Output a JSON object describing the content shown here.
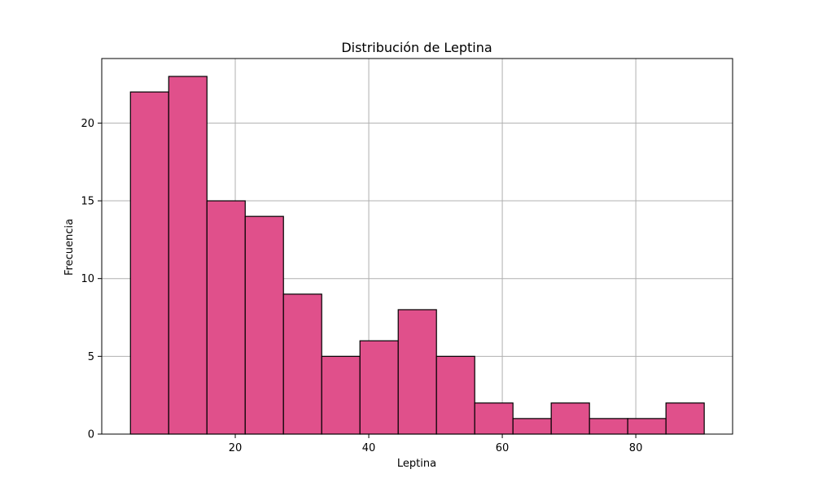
{
  "chart_data": {
    "type": "bar",
    "title": "Distribución de Leptina",
    "xlabel": "Leptina",
    "ylabel": "Frecuencia",
    "bin_edges": [
      4.3,
      10.03,
      15.76,
      21.49,
      27.22,
      32.95,
      38.68,
      44.41,
      50.14,
      55.87,
      61.6,
      67.33,
      73.06,
      78.79,
      84.52,
      90.25
    ],
    "values": [
      22,
      23,
      15,
      14,
      9,
      5,
      6,
      8,
      5,
      2,
      1,
      2,
      1,
      1,
      2
    ],
    "xlim": [
      0,
      94.5
    ],
    "ylim": [
      0,
      24.15
    ],
    "xticks": [
      20,
      40,
      60,
      80
    ],
    "yticks": [
      0,
      5,
      10,
      15,
      20
    ],
    "grid": true,
    "bar_color": "#e0508b",
    "edge_color": "#000000"
  }
}
